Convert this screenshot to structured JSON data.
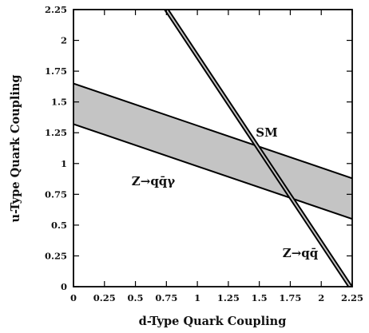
{
  "chart_data": {
    "type": "line",
    "title": "",
    "xlabel": "d-Type Quark Coupling",
    "ylabel": "u-Type Quark Coupling",
    "xlim": [
      0,
      2.25
    ],
    "ylim": [
      0,
      2.25
    ],
    "xticks": [
      "0",
      "0.25",
      "0.5",
      "0.75",
      "1",
      "1.25",
      "1.5",
      "1.75",
      "2",
      "2.25"
    ],
    "yticks": [
      "0",
      "0.25",
      "0.5",
      "0.75",
      "1",
      "1.25",
      "1.5",
      "1.75",
      "2",
      "2.25"
    ],
    "grid": false,
    "legend": "none",
    "series": [
      {
        "name": "Z→qq̄γ",
        "kind": "band",
        "upper": [
          [
            0,
            1.65
          ],
          [
            2.25,
            0.88
          ]
        ],
        "lower": [
          [
            0,
            1.32
          ],
          [
            2.25,
            0.55
          ]
        ]
      },
      {
        "name": "Z→qq̄",
        "kind": "band",
        "upper": [
          [
            0.765,
            2.25
          ],
          [
            2.25,
            0.0
          ]
        ],
        "lower": [
          [
            0.735,
            2.25
          ],
          [
            2.22,
            0.0
          ]
        ]
      }
    ],
    "points": [
      {
        "name": "SM",
        "x": 1.48,
        "y": 1.15
      }
    ],
    "annotations": {
      "sm": "SM",
      "zqqgamma": "Z→qq̄γ",
      "zqq": "Z→qq̄"
    },
    "colors": {
      "band_fill": "#c4c4c4",
      "line": "#000000"
    }
  }
}
